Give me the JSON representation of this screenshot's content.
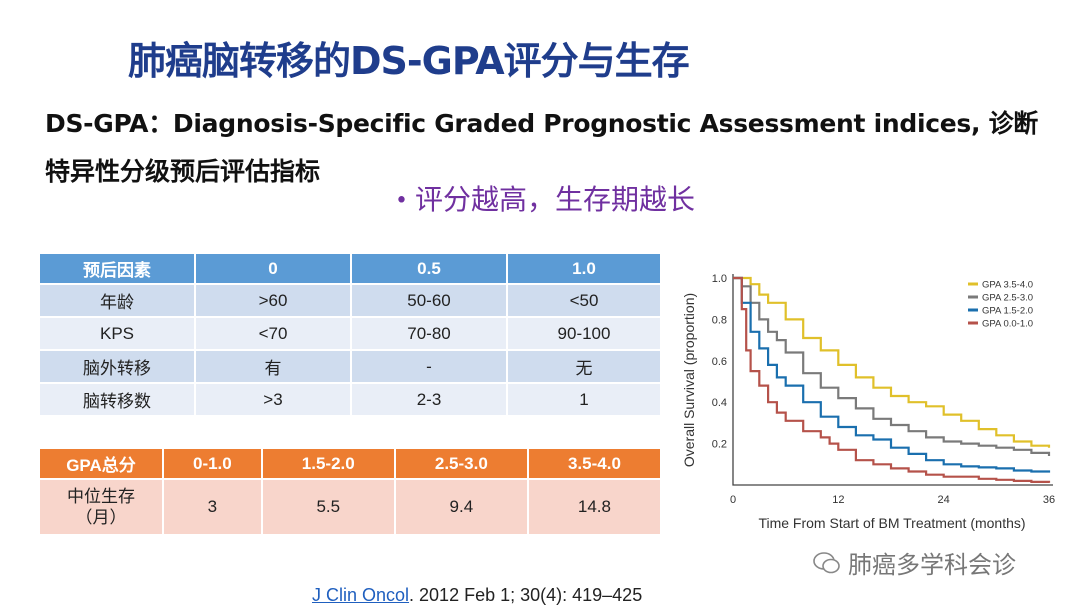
{
  "title": "肺癌脑转移的DS-GPA评分与生存",
  "subtitle_line1": "DS-GPA：Diagnosis-Specific Graded Prognostic Assessment indices, 诊断",
  "subtitle_line2": "特异性分级预后评估指标",
  "bullet": "评分越高，生存期越长",
  "factor_table": {
    "header": [
      "预后因素",
      "0",
      "0.5",
      "1.0"
    ],
    "rows": [
      [
        "年龄",
        ">60",
        "50-60",
        "<50"
      ],
      [
        "KPS",
        "<70",
        "70-80",
        "90-100"
      ],
      [
        "脑外转移",
        "有",
        "-",
        "无"
      ],
      [
        "脑转移数",
        ">3",
        "2-3",
        "1"
      ]
    ]
  },
  "gpa_table": {
    "header": [
      "GPA总分",
      "0-1.0",
      "1.5-2.0",
      "2.5-3.0",
      "3.5-4.0"
    ],
    "row_label_1": "中位生存",
    "row_label_2": "（月）",
    "values": [
      "3",
      "5.5",
      "9.4",
      "14.8"
    ]
  },
  "chart_data": {
    "type": "line",
    "xlabel": "Time From Start of BM Treatment (months)",
    "ylabel": "Overall Survival (proportion)",
    "xlim": [
      0,
      36
    ],
    "ylim": [
      0,
      1.0
    ],
    "xticks": [
      "0",
      "12",
      "24",
      "36"
    ],
    "yticks": [
      "0.2",
      "0.4",
      "0.6",
      "0.8",
      "1.0"
    ],
    "legend_position": "top-right",
    "series": [
      {
        "name": "GPA 3.5-4.0",
        "color": "#e0c02a",
        "x": [
          0,
          1,
          2,
          3,
          4,
          6,
          8,
          10,
          12,
          14,
          16,
          18,
          20,
          22,
          24,
          26,
          28,
          30,
          32,
          34,
          36
        ],
        "y": [
          1,
          1,
          0.97,
          0.92,
          0.88,
          0.8,
          0.71,
          0.65,
          0.58,
          0.52,
          0.47,
          0.43,
          0.4,
          0.38,
          0.34,
          0.31,
          0.27,
          0.24,
          0.21,
          0.19,
          0.18
        ]
      },
      {
        "name": "GPA 2.5-3.0",
        "color": "#7a7a7a",
        "x": [
          0,
          1,
          2,
          3,
          4,
          5,
          6,
          8,
          10,
          12,
          14,
          16,
          18,
          20,
          22,
          24,
          26,
          28,
          30,
          32,
          34,
          36
        ],
        "y": [
          1,
          0.96,
          0.88,
          0.8,
          0.74,
          0.7,
          0.64,
          0.54,
          0.47,
          0.42,
          0.37,
          0.32,
          0.29,
          0.26,
          0.23,
          0.21,
          0.2,
          0.19,
          0.18,
          0.17,
          0.155,
          0.14
        ]
      },
      {
        "name": "GPA 1.5-2.0",
        "color": "#1a6fae",
        "x": [
          0,
          1,
          2,
          3,
          4,
          5,
          6,
          8,
          10,
          12,
          14,
          16,
          18,
          20,
          22,
          24,
          26,
          28,
          30,
          32,
          34,
          36
        ],
        "y": [
          1,
          0.88,
          0.74,
          0.66,
          0.58,
          0.52,
          0.48,
          0.4,
          0.33,
          0.28,
          0.24,
          0.22,
          0.18,
          0.15,
          0.12,
          0.1,
          0.09,
          0.085,
          0.08,
          0.07,
          0.065,
          0.06
        ]
      },
      {
        "name": "GPA 0.0-1.0",
        "color": "#b5524a",
        "x": [
          0,
          1,
          1.5,
          2,
          3,
          4,
          5,
          6,
          8,
          10,
          11,
          12,
          14,
          16,
          18,
          20,
          22,
          24,
          26,
          28,
          30,
          32,
          34,
          36
        ],
        "y": [
          1,
          0.85,
          0.65,
          0.55,
          0.48,
          0.4,
          0.35,
          0.31,
          0.26,
          0.23,
          0.2,
          0.17,
          0.12,
          0.1,
          0.08,
          0.065,
          0.05,
          0.04,
          0.04,
          0.03,
          0.025,
          0.02,
          0.015,
          0.01
        ]
      }
    ]
  },
  "citation": {
    "journal": "J Clin Oncol",
    "rest": ". 2012 Feb 1; 30(4): 419–425"
  },
  "watermark": "肺癌多学科会诊"
}
